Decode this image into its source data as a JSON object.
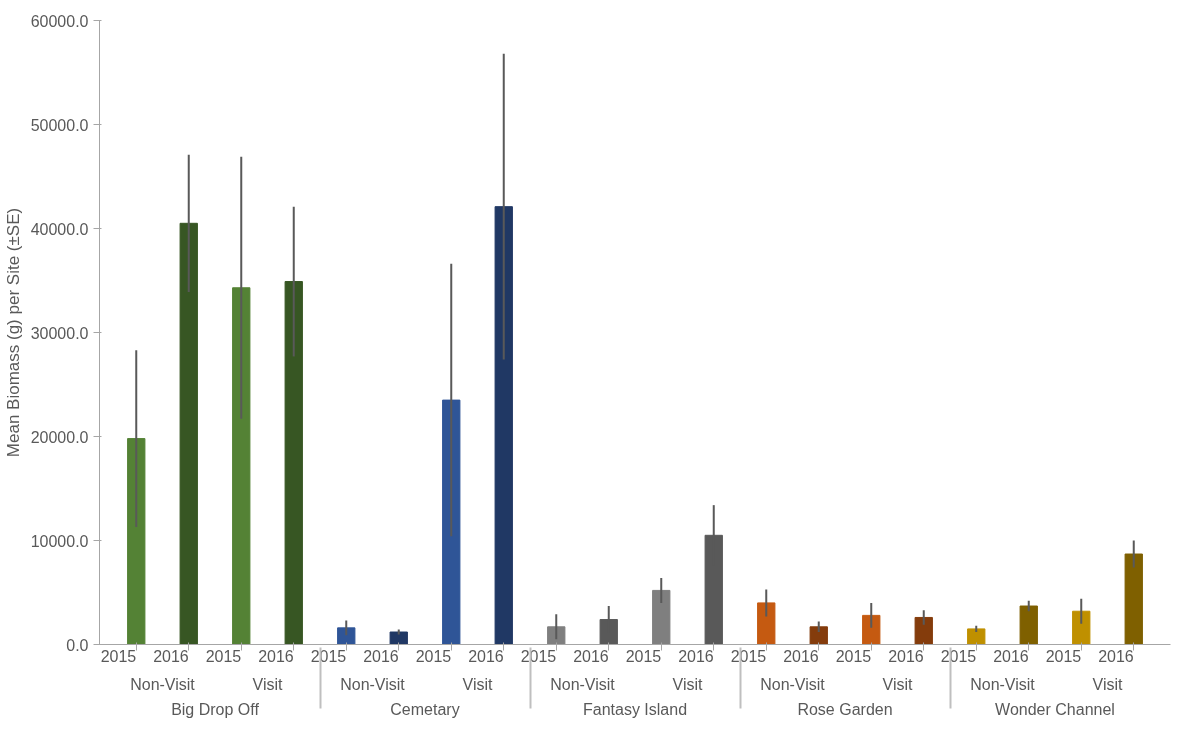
{
  "chart_data": {
    "type": "bar",
    "ylabel": "Mean Biomass (g) per Site (±SE)",
    "categories": [
      "2015",
      "2016",
      "2015",
      "2016",
      "2015",
      "2016",
      "2015",
      "2016",
      "2015",
      "2016",
      "2015",
      "2016",
      "2015",
      "2016",
      "2015",
      "2016",
      "2015",
      "2016",
      "2015",
      "2016"
    ],
    "annotations": [
      "Non-Visit",
      "Visit",
      "Non-Visit",
      "Visit",
      "Non-Visit",
      "Visit",
      "Non-Visit",
      "Visit",
      "Non-Visit",
      "Visit",
      "Big Drop Off",
      "Cemetary",
      "Fantasy Island",
      "Rose Garden",
      "Wonder Channel"
    ],
    "values": [
      19800,
      40500,
      34300,
      34900,
      1600,
      1200,
      23500,
      42100,
      1700,
      2400,
      5200,
      10500,
      4000,
      1700,
      2800,
      2600,
      1500,
      3700,
      3200,
      8700
    ],
    "errors": [
      8500,
      6600,
      12600,
      7200,
      700,
      250,
      13100,
      14700,
      1200,
      1300,
      1200,
      2900,
      1300,
      500,
      1200,
      700,
      300,
      500,
      1200,
      1300
    ],
    "colors": [
      "#548235",
      "#375623",
      "#548235",
      "#375623",
      "#2f5597",
      "#203864",
      "#2f5597",
      "#203864",
      "#7f7f7f",
      "#595959",
      "#7f7f7f",
      "#595959",
      "#c55a11",
      "#843c0c",
      "#c55a11",
      "#843c0c",
      "#bf9000",
      "#7f6000",
      "#bf9000",
      "#7f6000"
    ],
    "ylim": [
      0,
      60000
    ],
    "yticks": [
      {
        "value": 0,
        "label": "0.0"
      },
      {
        "value": 10000,
        "label": "10000.0"
      },
      {
        "value": 20000,
        "label": "20000.0"
      },
      {
        "value": 30000,
        "label": "30000.0"
      },
      {
        "value": 40000,
        "label": "40000.0"
      },
      {
        "value": 50000,
        "label": "50000.0"
      },
      {
        "value": 60000,
        "label": "60000.0"
      }
    ],
    "grid": false
  }
}
